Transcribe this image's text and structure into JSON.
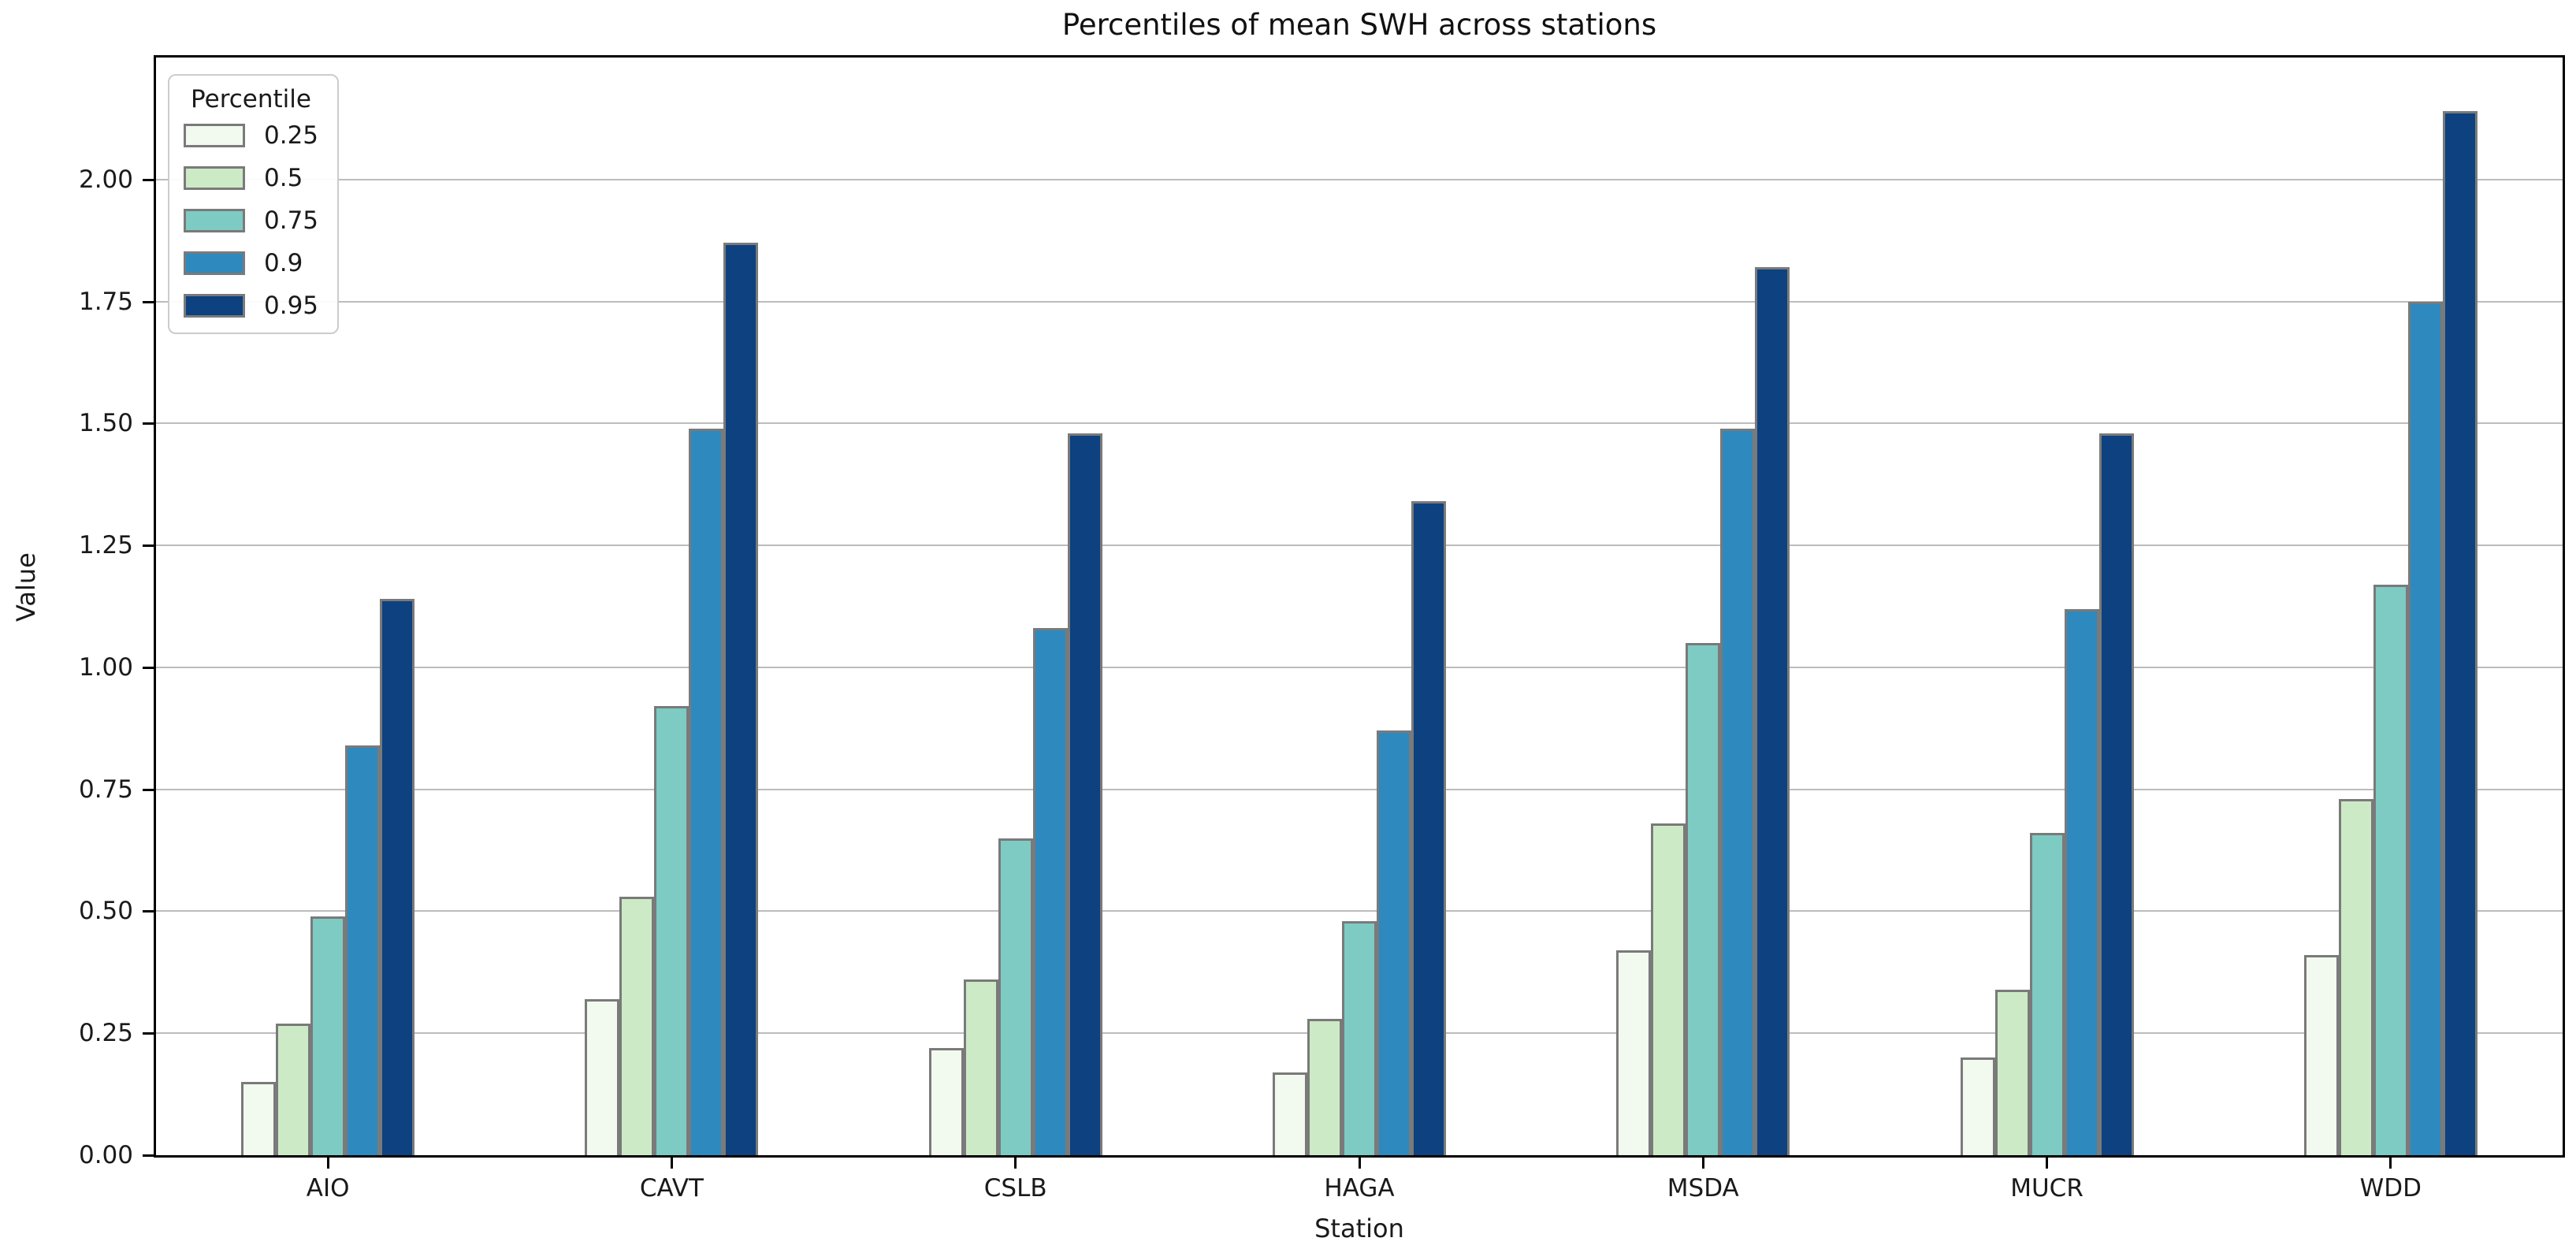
{
  "title": "Percentiles of mean SWH across stations",
  "axes": {
    "x_label": "Station",
    "y_label": "Value",
    "y_tick_labels": [
      "0.00",
      "0.25",
      "0.50",
      "0.75",
      "1.00",
      "1.25",
      "1.50",
      "1.75",
      "2.00"
    ]
  },
  "legend": {
    "title": "Percentile",
    "items": [
      {
        "label": "0.25",
        "color": "#f2f9ee"
      },
      {
        "label": "0.5",
        "color": "#cdeac6"
      },
      {
        "label": "0.75",
        "color": "#7ecbc4"
      },
      {
        "label": "0.9",
        "color": "#2e89bf"
      },
      {
        "label": "0.95",
        "color": "#0d4180"
      }
    ]
  },
  "chart_data": {
    "type": "bar",
    "title": "Percentiles of mean SWH across stations",
    "xlabel": "Station",
    "ylabel": "Value",
    "categories": [
      "AIO",
      "CAVT",
      "CSLB",
      "HAGA",
      "MSDA",
      "MUCR",
      "WDD"
    ],
    "series": [
      {
        "name": "0.25",
        "color": "#f2f9ee",
        "values": [
          0.15,
          0.32,
          0.22,
          0.17,
          0.42,
          0.2,
          0.41
        ]
      },
      {
        "name": "0.5",
        "color": "#cdeac6",
        "values": [
          0.27,
          0.53,
          0.36,
          0.28,
          0.68,
          0.34,
          0.73
        ]
      },
      {
        "name": "0.75",
        "color": "#7ecbc4",
        "values": [
          0.49,
          0.92,
          0.65,
          0.48,
          1.05,
          0.66,
          1.17
        ]
      },
      {
        "name": "0.9",
        "color": "#2e89bf",
        "values": [
          0.84,
          1.49,
          1.08,
          0.87,
          1.49,
          1.12,
          1.75
        ]
      },
      {
        "name": "0.95",
        "color": "#0d4180",
        "values": [
          1.14,
          1.87,
          1.48,
          1.34,
          1.82,
          1.48,
          2.14
        ]
      }
    ],
    "ylim": [
      0,
      2.25
    ],
    "y_ticks": [
      0,
      0.25,
      0.5,
      0.75,
      1.0,
      1.25,
      1.5,
      1.75,
      2.0
    ],
    "grid": "horizontal",
    "gridline_color": "#bcbcbc",
    "bar_edge_color": "#7a7a7a",
    "legend_title": "Percentile",
    "legend_position": "upper left"
  }
}
